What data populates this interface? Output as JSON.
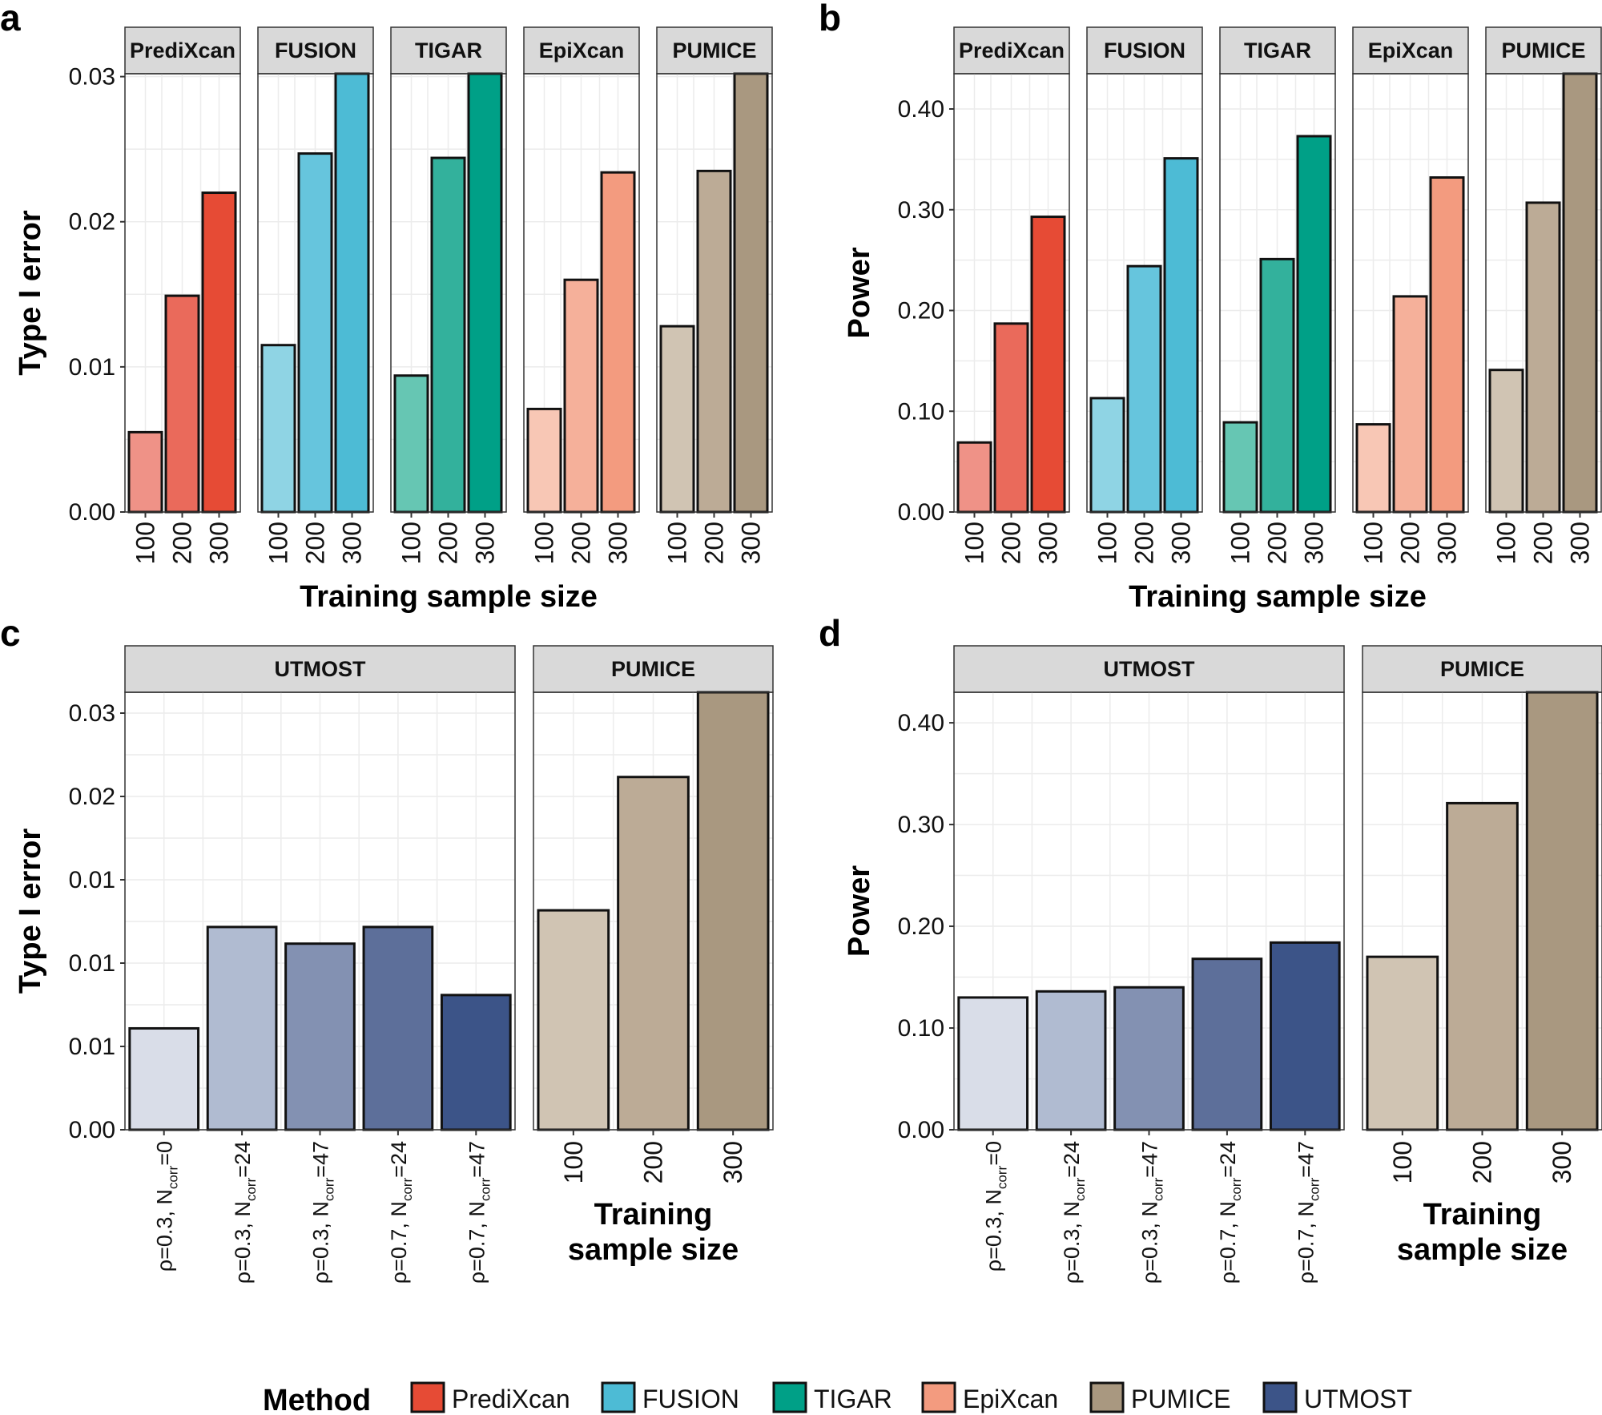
{
  "colors": {
    "PrediXcan": [
      "#ef9287",
      "#ea6a5b",
      "#e64b35"
    ],
    "FUSION": [
      "#8fd4e4",
      "#66c5dd",
      "#4dbbd5"
    ],
    "TIGAR": [
      "#66c6b3",
      "#33b19c",
      "#00a087"
    ],
    "EpiXcan": [
      "#f8c7b5",
      "#f5b09a",
      "#f39b7f"
    ],
    "PUMICE": [
      "#d0c4b3",
      "#bcab96",
      "#a99880"
    ],
    "UTMOST": [
      "#d9dde8",
      "#b0bbd1",
      "#8391b2",
      "#5d6f9a",
      "#3c5488"
    ]
  },
  "legend": {
    "title": "Method",
    "items": [
      {
        "label": "PrediXcan",
        "color": "#e64b35"
      },
      {
        "label": "FUSION",
        "color": "#4dbbd5"
      },
      {
        "label": "TIGAR",
        "color": "#00a087"
      },
      {
        "label": "EpiXcan",
        "color": "#f39b7f"
      },
      {
        "label": "PUMICE",
        "color": "#a99880"
      },
      {
        "label": "UTMOST",
        "color": "#3c5488"
      }
    ]
  },
  "chart_data": [
    {
      "panel": "a",
      "type": "bar",
      "ylabel": "Type I error",
      "xlabel": "Training sample size",
      "ylim": [
        0,
        0.0302
      ],
      "yticks": [
        0,
        0.01,
        0.02,
        0.03
      ],
      "yticklabels": [
        "0.00",
        "0.01",
        "0.02",
        "0.03"
      ],
      "categories": [
        "100",
        "200",
        "300"
      ],
      "facets": [
        {
          "name": "PrediXcan",
          "values": [
            0.0055,
            0.0149,
            0.022
          ]
        },
        {
          "name": "FUSION",
          "values": [
            0.0115,
            0.0247,
            0.0307
          ]
        },
        {
          "name": "TIGAR",
          "values": [
            0.0094,
            0.0244,
            0.0315
          ]
        },
        {
          "name": "EpiXcan",
          "values": [
            0.0071,
            0.016,
            0.0234
          ]
        },
        {
          "name": "PUMICE",
          "values": [
            0.0128,
            0.0235,
            0.0307
          ]
        }
      ]
    },
    {
      "panel": "b",
      "type": "bar",
      "ylabel": "Power",
      "xlabel": "Training sample size",
      "ylim": [
        0,
        0.435
      ],
      "yticks": [
        0,
        0.1,
        0.2,
        0.3,
        0.4
      ],
      "yticklabels": [
        "0.00",
        "0.10",
        "0.20",
        "0.30",
        "0.40"
      ],
      "categories": [
        "100",
        "200",
        "300"
      ],
      "facets": [
        {
          "name": "PrediXcan",
          "values": [
            0.069,
            0.187,
            0.293
          ]
        },
        {
          "name": "FUSION",
          "values": [
            0.113,
            0.244,
            0.351
          ]
        },
        {
          "name": "TIGAR",
          "values": [
            0.089,
            0.251,
            0.373
          ]
        },
        {
          "name": "EpiXcan",
          "values": [
            0.087,
            0.214,
            0.332
          ]
        },
        {
          "name": "PUMICE",
          "values": [
            0.141,
            0.307,
            0.435
          ]
        }
      ]
    },
    {
      "panel": "c",
      "type": "bar",
      "ylabel": "Type I error",
      "xlabel": "",
      "ylim": [
        0,
        0.0315
      ],
      "yticks": [
        0,
        0.006,
        0.012,
        0.018,
        0.024,
        0.03
      ],
      "yticklabels": [
        "0.00",
        "0.01",
        "0.01",
        "0.01",
        "0.02",
        "0.03"
      ],
      "facets": [
        {
          "name": "UTMOST",
          "categories": [
            {
              "main": "ρ=0.3, N",
              "sub": "corr",
              "post": "=0"
            },
            {
              "main": "ρ=0.3, N",
              "sub": "corr",
              "post": "=24"
            },
            {
              "main": "ρ=0.3, N",
              "sub": "corr",
              "post": "=47"
            },
            {
              "main": "ρ=0.7, N",
              "sub": "corr",
              "post": "=24"
            },
            {
              "main": "ρ=0.7, N",
              "sub": "corr",
              "post": "=47"
            }
          ],
          "values": [
            0.0073,
            0.0146,
            0.0134,
            0.0146,
            0.0097
          ]
        },
        {
          "name": "PUMICE",
          "xlabel": [
            "Training",
            "sample size"
          ],
          "categories": [
            "100",
            "200",
            "300"
          ],
          "values": [
            0.0158,
            0.0254,
            0.0315
          ]
        }
      ]
    },
    {
      "panel": "d",
      "type": "bar",
      "ylabel": "Power",
      "xlabel": "",
      "ylim": [
        0,
        0.43
      ],
      "yticks": [
        0,
        0.1,
        0.2,
        0.3,
        0.4
      ],
      "yticklabels": [
        "0.00",
        "0.10",
        "0.20",
        "0.30",
        "0.40"
      ],
      "facets": [
        {
          "name": "UTMOST",
          "categories": [
            {
              "main": "ρ=0.3, N",
              "sub": "corr",
              "post": "=0"
            },
            {
              "main": "ρ=0.3, N",
              "sub": "corr",
              "post": "=24"
            },
            {
              "main": "ρ=0.3, N",
              "sub": "corr",
              "post": "=47"
            },
            {
              "main": "ρ=0.7, N",
              "sub": "corr",
              "post": "=24"
            },
            {
              "main": "ρ=0.7, N",
              "sub": "corr",
              "post": "=47"
            }
          ],
          "values": [
            0.13,
            0.136,
            0.14,
            0.168,
            0.184
          ]
        },
        {
          "name": "PUMICE",
          "xlabel": [
            "Training",
            "sample size"
          ],
          "categories": [
            "100",
            "200",
            "300"
          ],
          "values": [
            0.17,
            0.321,
            0.43
          ]
        }
      ]
    }
  ]
}
